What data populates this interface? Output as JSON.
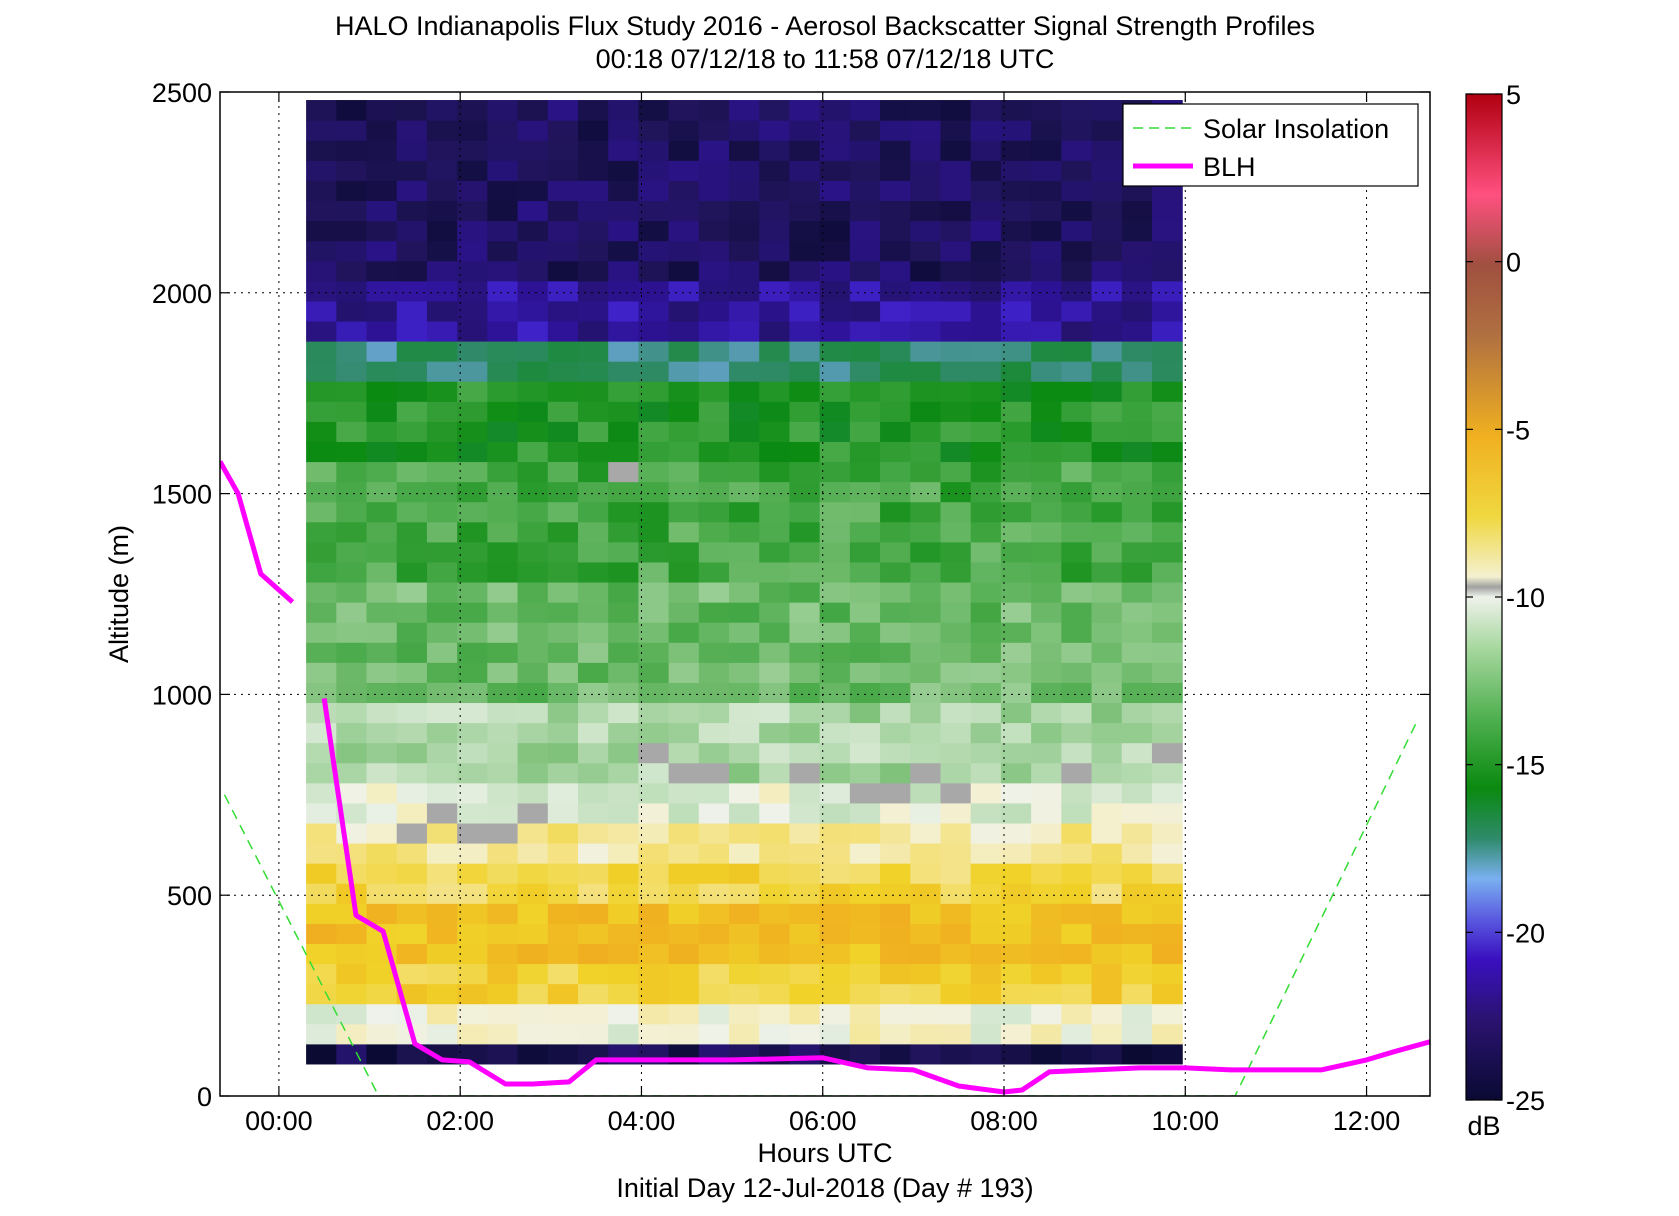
{
  "chart_data": {
    "type": "heatmap",
    "title": "HALO Indianapolis Flux Study 2016 - Aerosol Backscatter Signal Strength Profiles",
    "subtitle": "00:18 07/12/18 to 11:58 07/12/18  UTC",
    "xlabel": "Hours UTC",
    "xlabel2": "Initial Day 12-Jul-2018 (Day # 193)",
    "ylabel": "Altitude (m)",
    "xlim": [
      -0.65,
      12.7
    ],
    "ylim": [
      0,
      2500
    ],
    "x_ticks": [
      0,
      2,
      4,
      6,
      8,
      10,
      12
    ],
    "x_tick_labels": [
      "00:00",
      "02:00",
      "04:00",
      "06:00",
      "08:00",
      "10:00",
      "12:00"
    ],
    "y_ticks": [
      0,
      500,
      1000,
      1500,
      2000,
      2500
    ],
    "y_tick_labels": [
      "0",
      "500",
      "1000",
      "1500",
      "2000",
      "2500"
    ],
    "grid": true,
    "grid_style": "dotted",
    "colorbar": {
      "range": [
        -25,
        5
      ],
      "ticks": [
        5,
        0,
        -5,
        -10,
        -15,
        -20,
        -25
      ],
      "tick_labels": [
        "5",
        "0",
        "-5",
        "-10",
        "-15",
        "-20",
        "-25"
      ],
      "unit": "dB"
    },
    "heatmap": {
      "x_start": 0.3,
      "x_step": 0.3333,
      "x_count": 29,
      "altitude_bottom": 80,
      "altitude_step": 50,
      "altitude_layers": 48,
      "profile_layers_dB": [
        {
          "top": 130,
          "value": -24
        },
        {
          "top": 230,
          "value": -10
        },
        {
          "top": 330,
          "value": -7
        },
        {
          "top": 480,
          "value": -6
        },
        {
          "top": 580,
          "value": -7.5
        },
        {
          "top": 680,
          "value": -9
        },
        {
          "top": 780,
          "value": -10.5
        },
        {
          "top": 1000,
          "value": -12
        },
        {
          "top": 1300,
          "value": -13.5
        },
        {
          "top": 1600,
          "value": -14.5
        },
        {
          "top": 1800,
          "value": -15.5
        },
        {
          "top": 1880,
          "value": -18
        },
        {
          "top": 2050,
          "value": -22
        },
        {
          "top": 2500,
          "value": -23.5
        }
      ],
      "missing_marker": "gray",
      "missing_cells": [
        {
          "x": 2.0,
          "y": 650
        },
        {
          "x": 2.3,
          "y": 650
        },
        {
          "x": 1.3,
          "y": 650
        },
        {
          "x": 1.6,
          "y": 700
        },
        {
          "x": 2.6,
          "y": 700
        },
        {
          "x": 4.0,
          "y": 850
        },
        {
          "x": 4.3,
          "y": 800
        },
        {
          "x": 4.6,
          "y": 800
        },
        {
          "x": 6.3,
          "y": 750
        },
        {
          "x": 6.6,
          "y": 750
        },
        {
          "x": 7.0,
          "y": 800
        },
        {
          "x": 7.3,
          "y": 750
        },
        {
          "x": 8.6,
          "y": 800
        },
        {
          "x": 9.6,
          "y": 850
        },
        {
          "x": 10.0,
          "y": 850
        },
        {
          "x": 11.6,
          "y": 850
        },
        {
          "x": 3.6,
          "y": 1550
        },
        {
          "x": 5.6,
          "y": 800
        }
      ]
    },
    "series": [
      {
        "name": "Solar Insolation",
        "style": "dashed",
        "color": "#33dd33",
        "x": [
          -0.6,
          1.1,
          10.55,
          12.55
        ],
        "y": [
          750,
          0,
          0,
          930
        ]
      },
      {
        "name": "BLH",
        "style": "solid",
        "color": "#ff00ff",
        "segments": [
          {
            "x": [
              -0.65,
              -0.45,
              -0.2,
              0.15
            ],
            "y": [
              1580,
              1500,
              1300,
              1230
            ]
          },
          {
            "x": [
              0.5,
              0.85,
              1.15,
              1.5,
              1.8,
              2.1,
              2.5,
              2.8,
              3.2,
              3.5,
              4.0,
              5.0,
              6.0,
              6.5,
              7.0,
              7.5,
              8.0,
              8.2,
              8.5,
              9.0,
              9.5,
              10.0,
              10.5,
              11.0,
              11.5,
              12.0,
              12.3,
              12.7
            ],
            "y": [
              990,
              450,
              410,
              130,
              90,
              85,
              30,
              30,
              35,
              90,
              90,
              90,
              95,
              70,
              65,
              25,
              10,
              15,
              60,
              65,
              70,
              70,
              65,
              65,
              65,
              90,
              110,
              135
            ]
          }
        ]
      }
    ],
    "legend_placement": "top-right"
  }
}
